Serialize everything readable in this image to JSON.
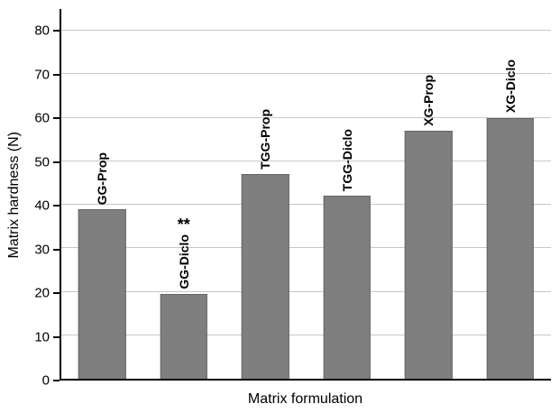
{
  "chart_data": {
    "type": "bar",
    "categories": [
      "GG-Prop",
      "GG-Diclo",
      "TGG-Prop",
      "TGG-Diclo",
      "XG-Prop",
      "XG-Diclo"
    ],
    "values": [
      39,
      19.5,
      47,
      42,
      57,
      60
    ],
    "annotations": [
      "",
      "**",
      "",
      "",
      "",
      ""
    ],
    "title": "",
    "xlabel": "Matrix formulation",
    "ylabel": "Matrix hardness (N)",
    "ylim": [
      0,
      85
    ],
    "yticks": [
      0,
      10,
      20,
      30,
      40,
      50,
      60,
      70,
      80
    ],
    "grid": true,
    "legend": false,
    "bar_color": "#7f7f7f",
    "bar_border_color": "#636363",
    "gridline_color": "#c8c8c8",
    "axis_color": "#000000"
  }
}
